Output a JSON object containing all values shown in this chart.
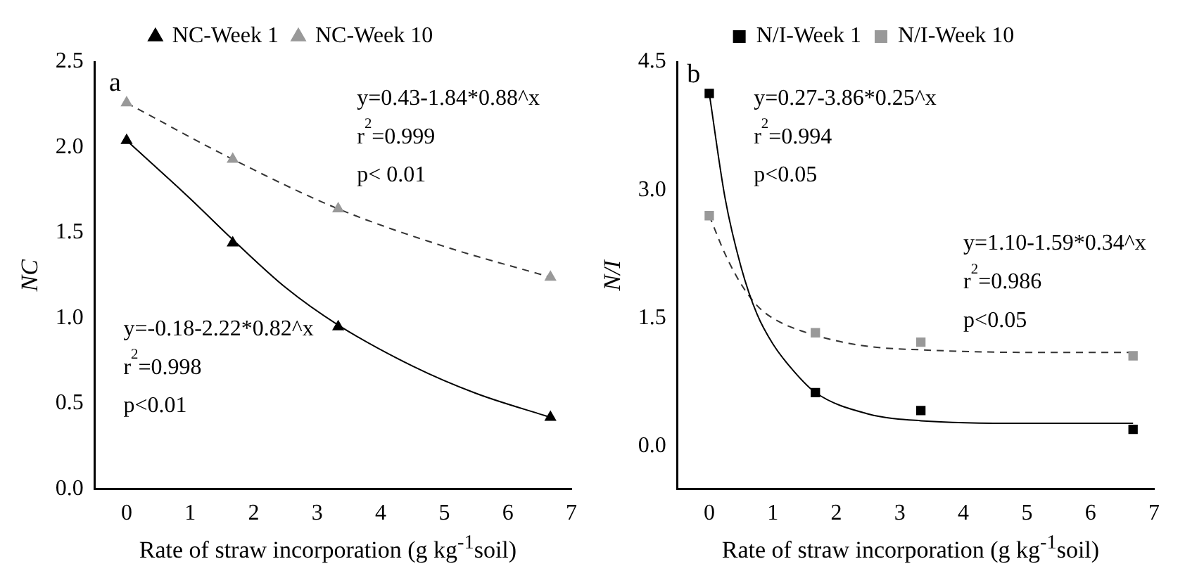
{
  "chart_data": [
    {
      "type": "scatter",
      "xlabel": "Rate of straw incorporation (g kg$^{-1}$soil)",
      "ylabel": "NC",
      "xlim": [
        -0.5,
        7
      ],
      "xticks": [
        0,
        1,
        2,
        3,
        4,
        5,
        6,
        7
      ],
      "ylim": [
        0,
        2.5
      ],
      "yticks": [
        {
          "value": 0,
          "label": "0.0"
        },
        0.5,
        {
          "value": 1,
          "label": "1.0"
        },
        1.5,
        {
          "value": 2,
          "label": "2.0"
        },
        2.5
      ],
      "grid": false,
      "legend": "top",
      "annotations": [
        "a",
        "y=0.43-1.84*0.88^x",
        "r$^{2}$=0.999",
        "p< 0.01",
        "y=-0.18-2.22*0.82^x",
        "r$^{2}$=0.998",
        "p<0.01"
      ],
      "series": [
        {
          "name": "NC-Week 1",
          "type": "scatter",
          "marker": "triangle",
          "color": "#000000",
          "x": [
            0,
            1.67,
            3.33,
            6.67
          ],
          "values": [
            2.04,
            1.44,
            0.95,
            0.42
          ]
        },
        {
          "name": "NC-Week 10",
          "type": "scatter",
          "marker": "triangle",
          "color": "#999999",
          "x": [
            0,
            1.67,
            3.33,
            6.67
          ],
          "values": [
            2.26,
            1.93,
            1.64,
            1.24
          ]
        },
        {
          "type": "line",
          "marker": "none",
          "line_style": "solid",
          "color": "#000000",
          "x": [
            0,
            1,
            1.67,
            2.5,
            3.33,
            4.5,
            5.5,
            6.67
          ],
          "values": [
            2.04,
            1.7,
            1.46,
            1.18,
            0.96,
            0.72,
            0.56,
            0.42
          ]
        },
        {
          "type": "line",
          "marker": "none",
          "line_style": "dashed",
          "color": "#333333",
          "x": [
            0,
            1.67,
            3.33,
            5,
            6.67
          ],
          "values": [
            2.26,
            1.93,
            1.64,
            1.42,
            1.24
          ]
        }
      ]
    },
    {
      "type": "scatter",
      "xlabel": "Rate of straw incorporation (g kg$^{-1}$soil)",
      "ylabel": "N/I",
      "xlim": [
        -0.5,
        7
      ],
      "xticks": [
        0,
        1,
        2,
        3,
        4,
        5,
        6,
        7
      ],
      "ylim": [
        -0.5,
        4.5
      ],
      "yticks": [
        {
          "value": 0,
          "label": "0.0"
        },
        1.5,
        {
          "value": 3,
          "label": "3.0"
        },
        4.5
      ],
      "grid": false,
      "legend": "top",
      "annotations": [
        "b",
        "y=0.27-3.86*0.25^x",
        "r$^{2}$=0.994",
        "p<0.05",
        "y=1.10-1.59*0.34^x",
        "r$^{2}$=0.986",
        "p<0.05"
      ],
      "series": [
        {
          "name": "N/I-Week 1",
          "type": "scatter",
          "marker": "square",
          "color": "#000000",
          "x": [
            0,
            1.67,
            3.33,
            6.67
          ],
          "values": [
            4.13,
            0.63,
            0.42,
            0.2
          ]
        },
        {
          "name": "N/I-Week 10",
          "type": "scatter",
          "marker": "square",
          "color": "#999999",
          "x": [
            0,
            1.67,
            3.33,
            6.67
          ],
          "values": [
            2.7,
            1.33,
            1.22,
            1.06
          ]
        },
        {
          "type": "line",
          "marker": "none",
          "line_style": "solid",
          "color": "#000000",
          "x": [
            0,
            0.25,
            0.5,
            0.75,
            1,
            1.33,
            1.67,
            2.5,
            3.33,
            5,
            6.67
          ],
          "values": [
            4.13,
            2.9,
            2.1,
            1.55,
            1.2,
            0.88,
            0.63,
            0.38,
            0.3,
            0.27,
            0.27
          ]
        },
        {
          "type": "line",
          "marker": "none",
          "line_style": "dashed",
          "color": "#333333",
          "x": [
            0,
            0.25,
            0.5,
            0.75,
            1,
            1.67,
            2.5,
            3.33,
            5,
            6.67
          ],
          "values": [
            2.7,
            2.25,
            1.9,
            1.65,
            1.5,
            1.3,
            1.17,
            1.13,
            1.1,
            1.1
          ]
        }
      ]
    }
  ]
}
